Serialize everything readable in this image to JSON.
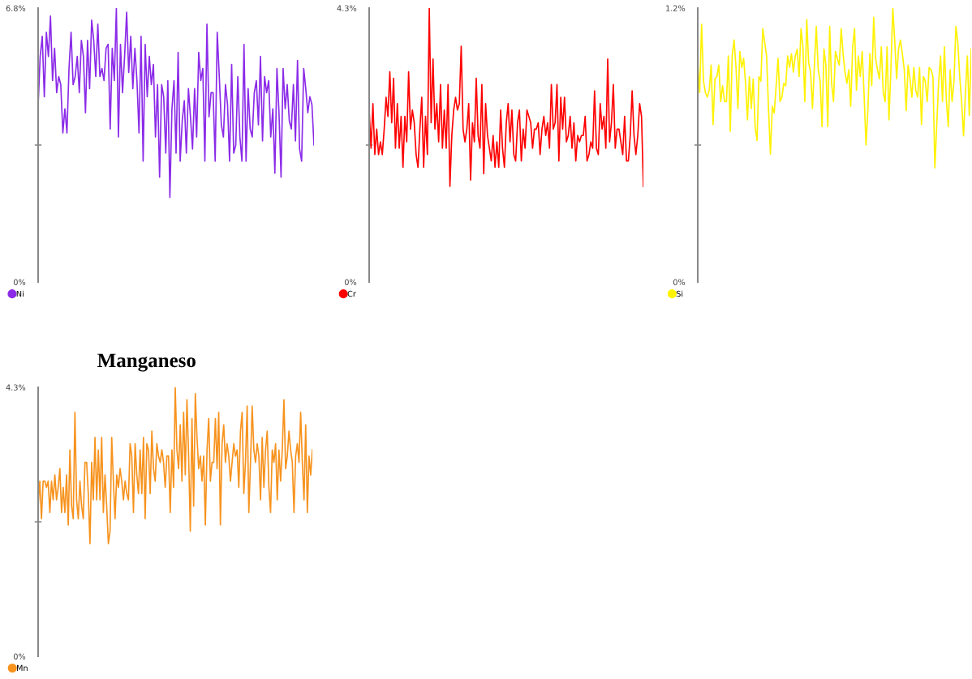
{
  "chart_data": [
    {
      "type": "line",
      "categories": [
        null,
        null,
        null,
        null,
        null,
        null,
        null,
        null,
        null,
        null,
        null,
        null,
        null,
        null,
        null,
        null,
        null,
        null,
        null,
        null,
        null,
        null,
        null,
        null,
        null,
        null,
        null,
        null,
        null,
        null,
        null,
        null,
        null,
        null,
        null,
        null,
        null,
        null,
        null,
        null,
        null,
        null,
        null,
        null,
        null,
        null,
        null,
        null,
        null,
        null,
        null,
        null,
        null,
        null,
        null,
        null,
        null,
        null,
        null,
        null,
        null,
        null,
        null,
        null,
        null,
        null,
        null,
        null,
        null,
        null,
        null,
        null,
        null,
        null,
        null,
        null,
        null,
        null,
        null,
        null,
        null,
        null,
        null,
        null,
        null,
        null,
        null,
        null,
        null,
        null,
        null,
        null,
        null,
        null,
        null,
        null,
        null,
        null,
        null,
        null,
        null,
        null,
        null,
        null,
        null,
        null,
        null,
        null,
        null,
        null,
        null,
        null,
        null,
        null,
        null,
        null,
        null,
        null,
        null,
        null,
        null,
        null,
        null,
        null,
        null,
        null,
        null,
        null,
        null,
        null,
        null,
        null,
        null,
        null,
        null
      ],
      "series": [
        {
          "name": "Ni",
          "color": "#8b2be8",
          "values": [
            4.4,
            5.6,
            6.1,
            4.6,
            6.2,
            5.6,
            6.6,
            5.0,
            5.8,
            4.7,
            5.1,
            4.9,
            3.7,
            4.3,
            3.7,
            5.3,
            6.2,
            4.9,
            5.1,
            5.6,
            4.7,
            6.0,
            5.6,
            4.2,
            6.0,
            4.8,
            6.5,
            6.0,
            5.1,
            6.4,
            5.1,
            5.3,
            5.0,
            5.8,
            5.9,
            3.8,
            5.8,
            5.0,
            6.8,
            3.6,
            5.9,
            4.7,
            5.6,
            6.7,
            5.2,
            6.1,
            4.8,
            5.8,
            5.0,
            3.7,
            6.1,
            3.0,
            5.9,
            4.6,
            5.6,
            4.9,
            5.4,
            3.6,
            4.9,
            2.6,
            4.9,
            4.6,
            3.2,
            5.0,
            2.1,
            4.3,
            5.0,
            3.2,
            5.7,
            3.0,
            4.0,
            4.5,
            3.2,
            4.8,
            4.1,
            3.3,
            4.8,
            3.6,
            5.7,
            5.0,
            5.3,
            3.0,
            6.4,
            4.1,
            4.7,
            4.7,
            3.0,
            6.2,
            5.1,
            3.9,
            3.6,
            4.9,
            4.4,
            3.0,
            5.4,
            3.2,
            3.4,
            5.1,
            3.6,
            3.0,
            5.9,
            3.0,
            4.8,
            3.8,
            3.6,
            4.7,
            5.0,
            3.9,
            5.6,
            3.5,
            5.1,
            4.7,
            5.0,
            3.6,
            4.3,
            2.7,
            5.3,
            4.2,
            2.6,
            5.3,
            4.3,
            4.9,
            4.0,
            3.8,
            4.9,
            3.5,
            5.5,
            3.3,
            3.0,
            5.3,
            4.8,
            4.2,
            4.6,
            4.4,
            3.4
          ]
        }
      ],
      "ylim": [
        0,
        6.8
      ],
      "yticks": [
        {
          "value": 0,
          "label": "0%"
        },
        {
          "value": 3.4,
          "label": null
        },
        {
          "value": 6.8,
          "label": "6.8%"
        }
      ],
      "tick_labels": "y",
      "grid": false,
      "legend": "bottom left",
      "marker": "none",
      "line_style": "solid"
    },
    {
      "type": "line",
      "categories": [
        null,
        null,
        null,
        null,
        null,
        null,
        null,
        null,
        null,
        null,
        null,
        null,
        null,
        null,
        null,
        null,
        null,
        null,
        null,
        null,
        null,
        null,
        null,
        null,
        null,
        null,
        null,
        null,
        null,
        null,
        null,
        null,
        null,
        null,
        null,
        null,
        null,
        null,
        null,
        null,
        null,
        null,
        null,
        null,
        null,
        null,
        null,
        null,
        null,
        null,
        null,
        null,
        null,
        null,
        null,
        null,
        null,
        null,
        null,
        null,
        null,
        null,
        null,
        null,
        null,
        null,
        null,
        null,
        null,
        null,
        null,
        null,
        null,
        null,
        null,
        null,
        null,
        null,
        null,
        null,
        null,
        null,
        null,
        null,
        null,
        null,
        null,
        null,
        null,
        null,
        null,
        null,
        null,
        null,
        null,
        null,
        null,
        null,
        null,
        null,
        null,
        null,
        null,
        null,
        null,
        null,
        null,
        null,
        null,
        null,
        null,
        null,
        null,
        null,
        null,
        null,
        null,
        null,
        null,
        null,
        null,
        null,
        null,
        null,
        null,
        null,
        null,
        null,
        null,
        null,
        null,
        null,
        null,
        null,
        null,
        null,
        null,
        null,
        null,
        null,
        null,
        null,
        null,
        null,
        null,
        null,
        null
      ],
      "series": [
        {
          "name": "Cr",
          "color": "#ff0000",
          "values": [
            2.7,
            2.1,
            2.8,
            2.0,
            2.4,
            2.0,
            2.2,
            2.0,
            2.4,
            2.9,
            2.6,
            3.3,
            2.5,
            3.2,
            2.1,
            2.8,
            2.1,
            2.6,
            1.8,
            2.6,
            2.2,
            3.3,
            2.4,
            2.7,
            2.5,
            2.0,
            1.8,
            2.4,
            2.9,
            1.8,
            2.6,
            2.0,
            4.3,
            2.5,
            3.5,
            2.4,
            2.8,
            2.2,
            3.1,
            2.1,
            2.7,
            2.1,
            3.1,
            1.5,
            2.3,
            2.7,
            2.9,
            2.7,
            2.8,
            3.7,
            2.4,
            2.2,
            2.4,
            2.8,
            1.6,
            2.5,
            2.2,
            3.2,
            2.3,
            2.1,
            3.1,
            1.7,
            2.8,
            2.3,
            2.1,
            1.9,
            2.3,
            1.8,
            2.2,
            1.8,
            2.7,
            2.1,
            1.8,
            2.5,
            2.8,
            2.2,
            2.7,
            2.0,
            1.9,
            2.5,
            2.7,
            1.9,
            2.4,
            2.1,
            2.7,
            2.6,
            2.5,
            2.1,
            2.4,
            2.4,
            2.5,
            2.0,
            2.4,
            2.6,
            2.3,
            2.5,
            2.1,
            3.1,
            2.4,
            2.5,
            3.1,
            1.9,
            2.9,
            2.4,
            2.9,
            2.2,
            2.3,
            2.6,
            2.1,
            2.5,
            1.9,
            2.3,
            2.2,
            2.3,
            2.3,
            2.6,
            1.9,
            2.0,
            2.2,
            2.1,
            3.0,
            2.1,
            2.0,
            2.8,
            2.4,
            2.6,
            2.1,
            3.5,
            2.2,
            2.5,
            3.1,
            2.1,
            2.4,
            2.4,
            2.2,
            2.0,
            2.6,
            1.9,
            1.9,
            2.3,
            3.0,
            2.3,
            2.0,
            2.3,
            2.8,
            2.6,
            1.5
          ]
        }
      ],
      "ylim": [
        0,
        4.3
      ],
      "yticks": [
        {
          "value": 0,
          "label": "0%"
        },
        {
          "value": 2.15,
          "label": null
        },
        {
          "value": 4.3,
          "label": "4.3%"
        }
      ],
      "tick_labels": "y",
      "grid": false,
      "legend": "bottom left",
      "marker": "none",
      "line_style": "solid"
    },
    {
      "type": "line",
      "categories": [
        null,
        null,
        null,
        null,
        null,
        null,
        null,
        null,
        null,
        null,
        null,
        null,
        null,
        null,
        null,
        null,
        null,
        null,
        null,
        null,
        null,
        null,
        null,
        null,
        null,
        null,
        null,
        null,
        null,
        null,
        null,
        null,
        null,
        null,
        null,
        null,
        null,
        null,
        null,
        null,
        null,
        null,
        null,
        null,
        null,
        null,
        null,
        null,
        null,
        null,
        null,
        null,
        null,
        null,
        null,
        null,
        null,
        null,
        null,
        null,
        null,
        null,
        null,
        null,
        null,
        null,
        null,
        null,
        null,
        null,
        null,
        null,
        null,
        null,
        null,
        null,
        null,
        null,
        null,
        null,
        null,
        null,
        null,
        null,
        null,
        null,
        null,
        null,
        null,
        null,
        null,
        null,
        null,
        null,
        null,
        null,
        null,
        null,
        null,
        null,
        null,
        null,
        null,
        null,
        null,
        null,
        null,
        null,
        null,
        null,
        null,
        null,
        null,
        null,
        null,
        null,
        null,
        null,
        null,
        null,
        null,
        null,
        null,
        null,
        null,
        null,
        null,
        null,
        null,
        null,
        null,
        null,
        null,
        null,
        null,
        null,
        null,
        null,
        null,
        null,
        null,
        null,
        null,
        null
      ],
      "series": [
        {
          "name": "Si",
          "color": "#fff200",
          "values": [
            0.96,
            0.83,
            1.13,
            0.88,
            0.83,
            0.81,
            0.84,
            0.95,
            0.69,
            0.89,
            0.9,
            0.95,
            0.79,
            0.86,
            0.79,
            0.79,
            0.99,
            0.66,
            0.99,
            1.06,
            0.94,
            0.76,
            1.01,
            0.94,
            0.98,
            0.87,
            0.71,
            0.9,
            0.76,
            0.89,
            0.68,
            0.62,
            0.9,
            0.88,
            1.11,
            1.05,
            0.99,
            0.76,
            0.56,
            0.77,
            0.74,
            0.86,
            0.98,
            0.79,
            0.81,
            0.87,
            0.86,
            0.99,
            0.94,
            1.0,
            0.92,
            0.99,
            1.02,
            0.9,
            1.11,
            1.03,
            0.79,
            1.15,
            0.96,
            0.92,
            0.76,
            0.95,
            1.12,
            0.93,
            0.88,
            0.68,
            1.02,
            0.95,
            0.68,
            1.12,
            0.87,
            0.79,
            1.01,
            0.98,
            0.95,
            1.11,
            1.0,
            0.92,
            0.87,
            0.93,
            0.77,
            1.03,
            1.11,
            0.84,
            0.99,
            0.9,
            1.01,
            0.82,
            0.6,
            0.76,
            1.0,
            0.86,
            1.16,
            0.98,
            0.93,
            0.89,
            1.03,
            0.83,
            0.79,
            1.03,
            0.71,
            0.93,
            1.2,
            1.06,
            0.89,
            1.02,
            1.06,
            1.0,
            0.93,
            0.75,
            0.95,
            0.89,
            0.81,
            0.94,
            0.84,
            0.81,
            0.94,
            0.69,
            0.9,
            0.88,
            0.79,
            0.94,
            0.93,
            0.9,
            0.5,
            0.69,
            0.88,
            0.99,
            0.79,
            1.03,
            0.8,
            0.68,
            0.93,
            0.79,
            0.88,
            1.12,
            1.05,
            0.9,
            0.79,
            0.64,
            0.83,
            0.99,
            0.73,
            1.02
          ]
        }
      ],
      "ylim": [
        0,
        1.2
      ],
      "yticks": [
        {
          "value": 0,
          "label": "0%"
        },
        {
          "value": 0.6,
          "label": null
        },
        {
          "value": 1.2,
          "label": "1.2%"
        }
      ],
      "tick_labels": "y",
      "grid": false,
      "legend": "bottom left",
      "marker": "none",
      "line_style": "solid"
    },
    {
      "type": "line",
      "title": "Manganeso",
      "categories": [
        null,
        null,
        null,
        null,
        null,
        null,
        null,
        null,
        null,
        null,
        null,
        null,
        null,
        null,
        null,
        null,
        null,
        null,
        null,
        null,
        null,
        null,
        null,
        null,
        null,
        null,
        null,
        null,
        null,
        null,
        null,
        null,
        null,
        null,
        null,
        null,
        null,
        null,
        null,
        null,
        null,
        null,
        null,
        null,
        null,
        null,
        null,
        null,
        null,
        null,
        null,
        null,
        null,
        null,
        null,
        null,
        null,
        null,
        null,
        null,
        null,
        null,
        null,
        null,
        null,
        null,
        null,
        null,
        null,
        null,
        null,
        null,
        null,
        null,
        null,
        null,
        null,
        null,
        null,
        null,
        null,
        null,
        null,
        null,
        null,
        null,
        null,
        null,
        null,
        null,
        null,
        null,
        null,
        null,
        null,
        null,
        null,
        null,
        null,
        null,
        null,
        null,
        null,
        null,
        null,
        null,
        null,
        null,
        null,
        null,
        null,
        null,
        null,
        null,
        null,
        null,
        null,
        null,
        null,
        null,
        null,
        null,
        null,
        null,
        null,
        null,
        null,
        null,
        null,
        null,
        null,
        null,
        null,
        null,
        null,
        null,
        null,
        null,
        null,
        null,
        null,
        null,
        null,
        null,
        null,
        null,
        null,
        null,
        null,
        null,
        null,
        null,
        null,
        null,
        null,
        null,
        null,
        null,
        null,
        null,
        null,
        null,
        null,
        null,
        null
      ],
      "series": [
        {
          "name": "Mn",
          "color": "#f7931e",
          "values": [
            2.4,
            2.8,
            2.2,
            2.8,
            2.8,
            2.7,
            2.8,
            2.3,
            2.8,
            2.5,
            2.9,
            2.5,
            2.7,
            3.0,
            2.3,
            2.7,
            2.3,
            2.9,
            2.1,
            3.3,
            2.4,
            2.2,
            3.9,
            2.5,
            2.2,
            2.8,
            2.4,
            2.2,
            3.1,
            3.1,
            2.6,
            1.8,
            3.1,
            2.5,
            3.5,
            2.5,
            3.3,
            2.5,
            3.5,
            2.3,
            2.9,
            2.4,
            1.8,
            2.0,
            3.5,
            2.8,
            2.2,
            2.9,
            2.7,
            3.0,
            2.8,
            2.5,
            2.8,
            2.6,
            2.5,
            3.4,
            3.2,
            2.3,
            3.4,
            2.9,
            2.6,
            3.3,
            2.6,
            3.5,
            2.2,
            3.4,
            3.3,
            2.6,
            3.6,
            3.0,
            2.8,
            3.4,
            3.2,
            3.1,
            3.3,
            3.1,
            2.7,
            3.2,
            3.2,
            2.3,
            3.3,
            2.7,
            4.3,
            3.3,
            3.0,
            3.7,
            2.8,
            3.9,
            2.9,
            4.1,
            3.2,
            2.0,
            3.8,
            2.4,
            4.2,
            3.5,
            3.0,
            3.2,
            2.8,
            3.2,
            2.1,
            3.3,
            3.8,
            2.8,
            3.1,
            3.1,
            3.8,
            3.0,
            3.9,
            2.1,
            3.4,
            3.7,
            3.1,
            3.4,
            3.2,
            2.8,
            3.1,
            3.4,
            3.2,
            3.3,
            2.7,
            3.6,
            3.9,
            2.6,
            3.1,
            4.0,
            2.3,
            3.1,
            4.0,
            3.3,
            3.1,
            3.4,
            3.2,
            2.5,
            3.5,
            2.7,
            3.3,
            3.6,
            2.7,
            2.3,
            3.3,
            3.1,
            3.4,
            2.5,
            3.3,
            2.8,
            3.3,
            4.1,
            3.0,
            3.2,
            3.6,
            3.3,
            3.1,
            2.3,
            3.2,
            3.4,
            3.1,
            3.9,
            3.1,
            2.5,
            3.7,
            2.3,
            3.2,
            2.9,
            3.3
          ]
        }
      ],
      "ylim": [
        0,
        4.3
      ],
      "yticks": [
        {
          "value": 0,
          "label": "0%"
        },
        {
          "value": 2.15,
          "label": null
        },
        {
          "value": 4.3,
          "label": "4.3%"
        }
      ],
      "tick_labels": "y",
      "grid": false,
      "legend": "bottom left",
      "marker": "none",
      "line_style": "solid"
    }
  ]
}
